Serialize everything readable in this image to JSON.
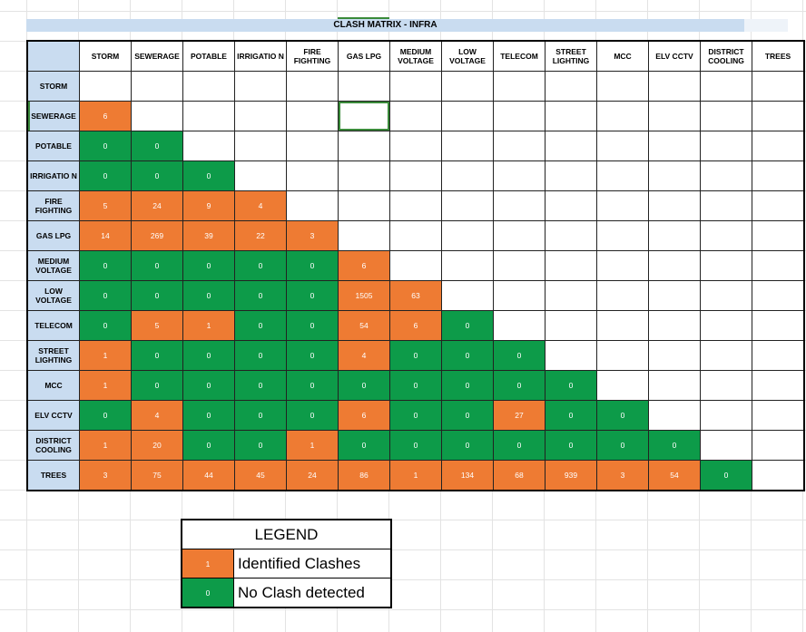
{
  "title": "CLASH MATRIX - INFRA",
  "columns": [
    "STORM",
    "SEWERAGE",
    "POTABLE",
    "IRRIGATIO N",
    "FIRE FIGHTING",
    "GAS LPG",
    "MEDIUM VOLTAGE",
    "LOW VOLTAGE",
    "TELECOM",
    "STREET LIGHTING",
    "MCC",
    "ELV CCTV",
    "DISTRICT COOLING",
    "TREES"
  ],
  "rows": [
    {
      "label": "STORM",
      "values": []
    },
    {
      "label": "SEWERAGE",
      "values": [
        6
      ]
    },
    {
      "label": "POTABLE",
      "values": [
        0,
        0
      ]
    },
    {
      "label": "IRRIGATIO N",
      "values": [
        0,
        0,
        0
      ]
    },
    {
      "label": "FIRE FIGHTING",
      "values": [
        5,
        24,
        9,
        4
      ]
    },
    {
      "label": "GAS LPG",
      "values": [
        14,
        269,
        39,
        22,
        3
      ]
    },
    {
      "label": "MEDIUM VOLTAGE",
      "values": [
        0,
        0,
        0,
        0,
        0,
        6
      ]
    },
    {
      "label": "LOW VOLTAGE",
      "values": [
        0,
        0,
        0,
        0,
        0,
        1505,
        63
      ]
    },
    {
      "label": "TELECOM",
      "values": [
        0,
        5,
        1,
        0,
        0,
        54,
        6,
        0
      ]
    },
    {
      "label": "STREET LIGHTING",
      "values": [
        1,
        0,
        0,
        0,
        0,
        4,
        0,
        0,
        0
      ]
    },
    {
      "label": "MCC",
      "values": [
        1,
        0,
        0,
        0,
        0,
        0,
        0,
        0,
        0,
        0
      ]
    },
    {
      "label": "ELV CCTV",
      "values": [
        0,
        4,
        0,
        0,
        0,
        6,
        0,
        0,
        27,
        0,
        0
      ]
    },
    {
      "label": "DISTRICT COOLING",
      "values": [
        1,
        20,
        0,
        0,
        1,
        0,
        0,
        0,
        0,
        0,
        0,
        0
      ]
    },
    {
      "label": "TREES",
      "values": [
        3,
        75,
        44,
        45,
        24,
        86,
        1,
        134,
        68,
        939,
        3,
        54,
        0
      ]
    }
  ],
  "selected_cell": {
    "row": 1,
    "col": 5
  },
  "colors": {
    "clash": "#ee7b33",
    "no_clash": "#0d9b49",
    "header": "#c9dcf0"
  },
  "legend": {
    "title": "LEGEND",
    "items": [
      {
        "sample": "1",
        "label": "Identified Clashes",
        "kind": "clash"
      },
      {
        "sample": "0",
        "label": "No Clash detected",
        "kind": "noclash"
      }
    ]
  }
}
